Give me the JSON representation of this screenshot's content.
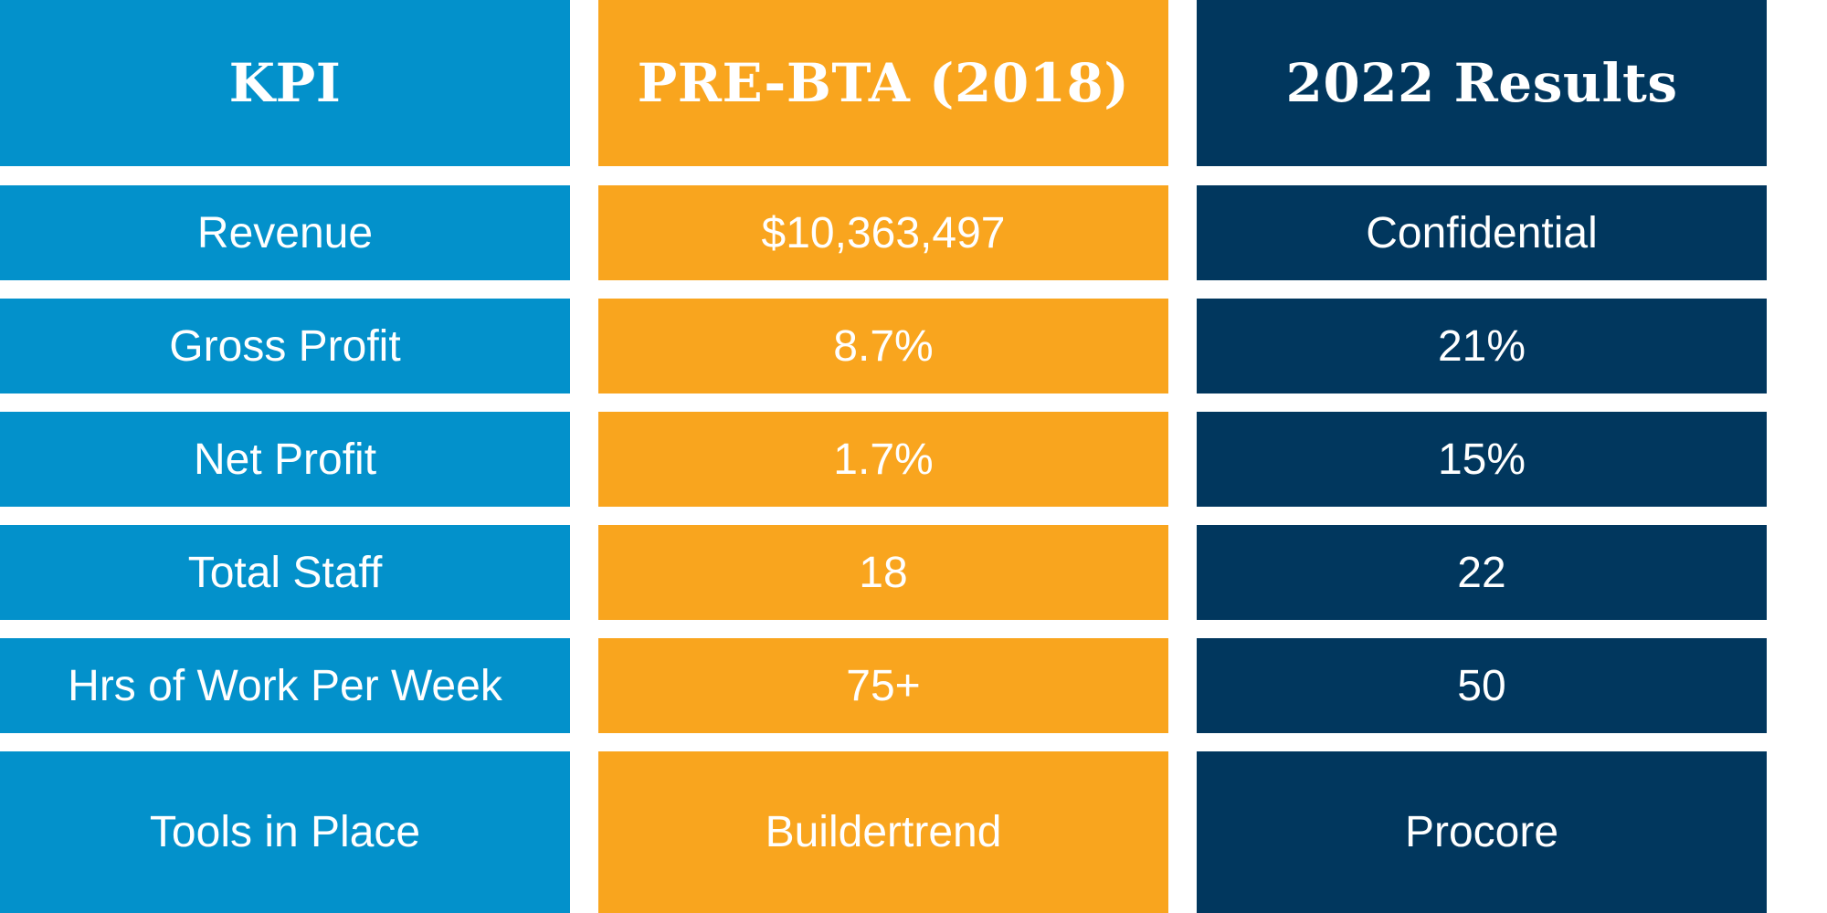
{
  "colors": {
    "kpi_column": "#0391CB",
    "pre_bta_column": "#F9A51E",
    "results_column": "#01375E",
    "text": "#FFFFFF",
    "background": "#FFFFFF"
  },
  "chart_data": {
    "type": "table",
    "headers": [
      "KPI",
      "PRE-BTA (2018)",
      "2022 Results"
    ],
    "rows": [
      [
        "Revenue",
        "$10,363,497",
        "Confidential"
      ],
      [
        "Gross Profit",
        "8.7%",
        "21%"
      ],
      [
        "Net Profit",
        "1.7%",
        "15%"
      ],
      [
        "Total Staff",
        "18",
        "22"
      ],
      [
        "Hrs of Work Per Week",
        "75+",
        "50"
      ],
      [
        "Tools in Place",
        "Buildertrend",
        "Procore"
      ]
    ]
  }
}
